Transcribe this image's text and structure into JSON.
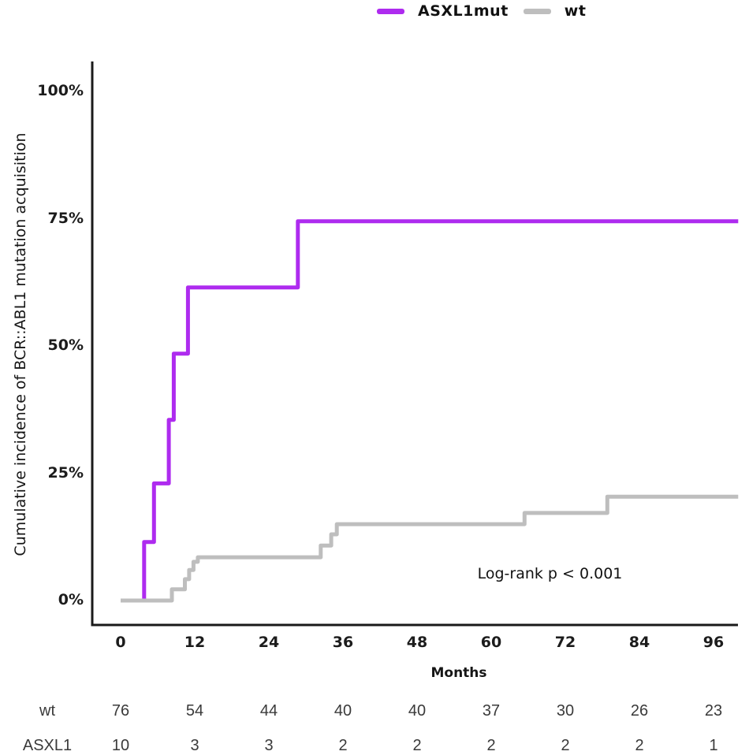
{
  "legend": {
    "items": [
      {
        "label": "ASXL1mut",
        "color": "#AE2BEF"
      },
      {
        "label": "wt",
        "color": "#BEBEBE"
      }
    ]
  },
  "chart_data": {
    "type": "line",
    "subtype": "cumulative-incidence-step-curves",
    "title": "",
    "xlabel": "Months",
    "ylabel": "Cumulative incidence of BCR::ABL1 mutation acquisition",
    "annotation": "Log-rank p < 0.001",
    "xlim": [
      0,
      100
    ],
    "ylim": [
      0,
      100
    ],
    "grid": false,
    "legend_position": "top",
    "x_ticks": [
      0,
      12,
      24,
      36,
      48,
      60,
      72,
      84,
      96
    ],
    "y_ticks": [
      {
        "value": 0,
        "label": "0%"
      },
      {
        "value": 25,
        "label": "25%"
      },
      {
        "value": 50,
        "label": "50%"
      },
      {
        "value": 75,
        "label": "75%"
      },
      {
        "value": 100,
        "label": "100%"
      }
    ],
    "series": [
      {
        "name": "ASXL1mut",
        "color": "#AE2BEF",
        "end_month": 100,
        "steps": [
          [
            0,
            0
          ],
          [
            3.8,
            11.5
          ],
          [
            5.4,
            23
          ],
          [
            7.8,
            35.5
          ],
          [
            8.6,
            48.5
          ],
          [
            10.9,
            61.5
          ],
          [
            28.7,
            74.5
          ]
        ]
      },
      {
        "name": "wt",
        "color": "#BEBEBE",
        "end_month": 100,
        "steps": [
          [
            0,
            0
          ],
          [
            8.3,
            2.2
          ],
          [
            10.4,
            4.2
          ],
          [
            11.1,
            6
          ],
          [
            11.8,
            7.6
          ],
          [
            12.5,
            8.5
          ],
          [
            32.4,
            10.8
          ],
          [
            34.1,
            13
          ],
          [
            35,
            15
          ],
          [
            65.4,
            17.2
          ],
          [
            78.8,
            20.4
          ]
        ]
      }
    ]
  },
  "risk_table": {
    "times": [
      0,
      12,
      24,
      36,
      48,
      60,
      72,
      84,
      96
    ],
    "rows": [
      {
        "label": "wt",
        "counts": [
          "76",
          "54",
          "44",
          "40",
          "40",
          "37",
          "30",
          "26",
          "23"
        ]
      },
      {
        "label": "ASXL1",
        "counts": [
          "10",
          "3",
          "3",
          "2",
          "2",
          "2",
          "2",
          "2",
          "1"
        ]
      }
    ]
  }
}
